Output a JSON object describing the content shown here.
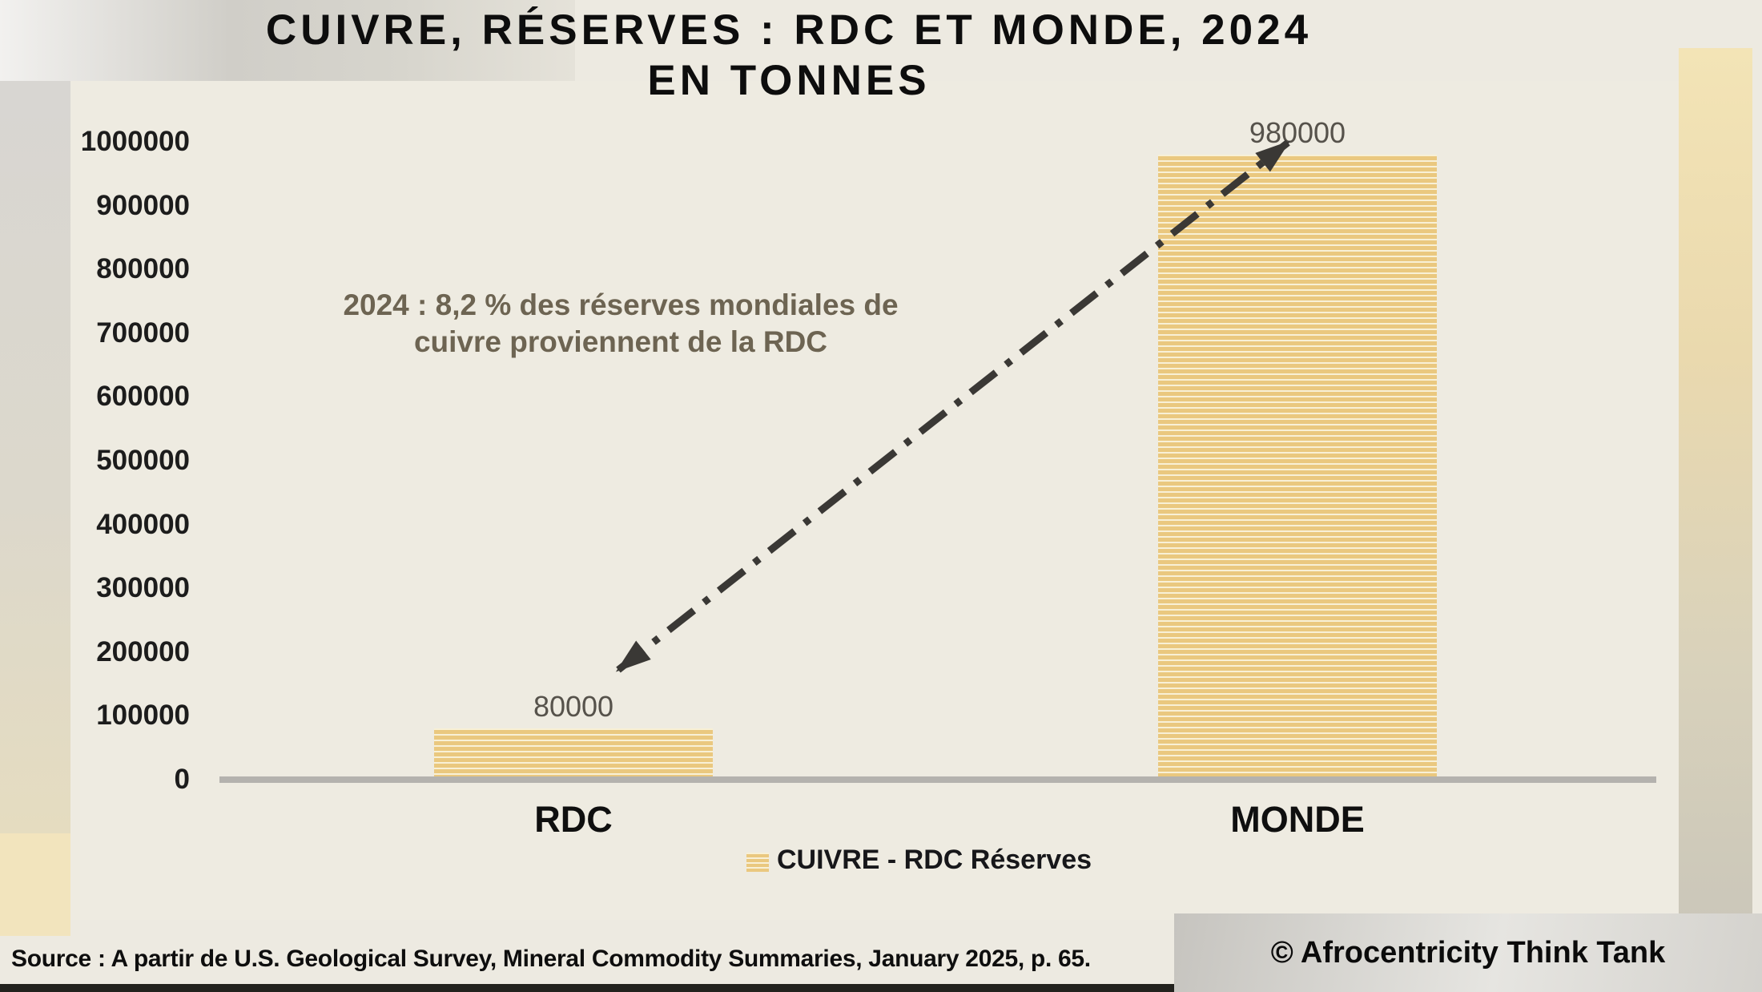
{
  "title": {
    "line1": "CUIVRE, RÉSERVES : RDC ET MONDE, 2024",
    "line2": "EN TONNES"
  },
  "annotation": {
    "line1": "2024 : 8,2 % des réserves mondiales de",
    "line2": "cuivre proviennent de la RDC"
  },
  "chart_data": {
    "type": "bar",
    "title": "CUIVRE, RÉSERVES : RDC ET MONDE, 2024 — EN TONNES",
    "unit": "tonnes",
    "categories": [
      "RDC",
      "MONDE"
    ],
    "values": [
      80000,
      980000
    ],
    "value_labels": [
      "80000",
      "980000"
    ],
    "series": [
      {
        "name": "CUIVRE - RDC Réserves",
        "values": [
          80000,
          980000
        ]
      }
    ],
    "ylim": [
      0,
      1000000
    ],
    "ytick_step": 100000,
    "yticks": [
      0,
      100000,
      200000,
      300000,
      400000,
      500000,
      600000,
      700000,
      800000,
      900000,
      1000000
    ],
    "grid": false,
    "legend_position": "bottom",
    "annotation": "2024 : 8,2 % des réserves mondiales de cuivre proviennent de la RDC"
  },
  "legend": {
    "label": "CUIVRE - RDC Réserves"
  },
  "footer": {
    "source": "Source : A partir de U.S. Geological Survey, Mineral Commodity Summaries, January 2025, p. 65.",
    "copyright": "© Afrocentricity Think Tank"
  },
  "colors": {
    "panel_background": "#eeebe1",
    "bar_fill": "#eac87f",
    "bar_stripe_light": "#f8f0d6",
    "axis_line": "#b4b2ae",
    "title_text": "#0d0d0d",
    "annotation_text": "#6d6452",
    "value_label_text": "#56524b",
    "arrow": "#3a3835",
    "top_band_gray": "#d0cec8",
    "right_strip_tan": "#f3e4b6",
    "bottom_left_tan": "#f2e4bd",
    "bottom_strip_dark": "#23221e"
  }
}
